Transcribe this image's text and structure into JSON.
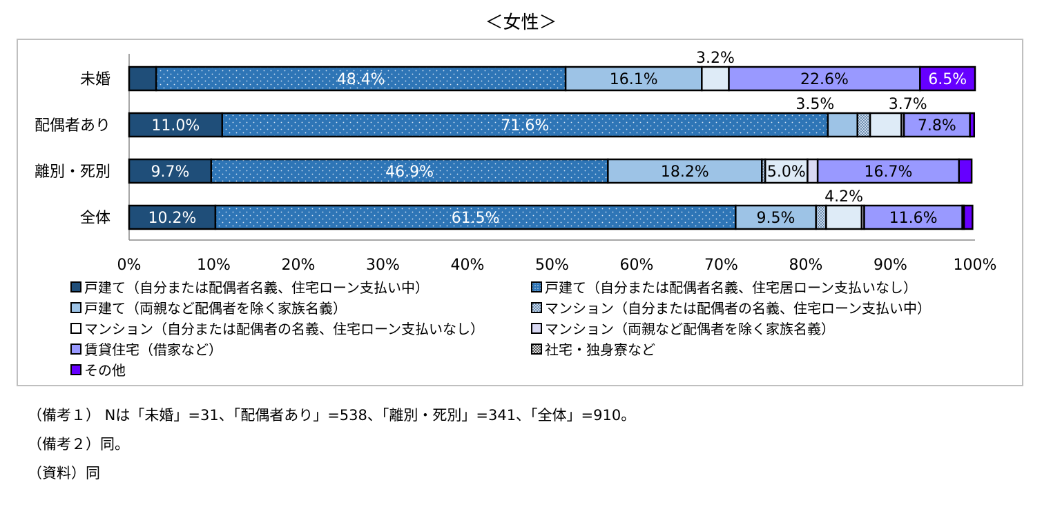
{
  "title": "＜女性＞",
  "chart_data": {
    "type": "bar",
    "orientation": "horizontal",
    "stacked": true,
    "title": "＜女性＞",
    "xlim": [
      0,
      100
    ],
    "x_ticks": [
      "0%",
      "10%",
      "20%",
      "30%",
      "40%",
      "50%",
      "60%",
      "70%",
      "80%",
      "90%",
      "100%"
    ],
    "categories": [
      "未婚",
      "配偶者あり",
      "離別・死別",
      "全体"
    ],
    "series": [
      {
        "name": "戸建て（自分または配偶者名義、住宅ローン支払い中）",
        "values": [
          3.2,
          11.0,
          9.7,
          10.2
        ],
        "labels": [
          "",
          "11.0%",
          "9.7%",
          "10.2%"
        ]
      },
      {
        "name": "戸建て（自分または配偶者名義、住宅居ローン支払いなし）",
        "values": [
          48.4,
          71.6,
          46.9,
          61.5
        ],
        "labels": [
          "48.4%",
          "71.6%",
          "46.9%",
          "61.5%"
        ]
      },
      {
        "name": "戸建て（両親など配偶者を除く家族名義）",
        "values": [
          16.1,
          3.5,
          18.2,
          9.5
        ],
        "labels": [
          "16.1%",
          "3.5%",
          "18.2%",
          "9.5%"
        ]
      },
      {
        "name": "マンション（自分または配偶者の名義、住宅ローン支払い中）",
        "values": [
          0.0,
          1.5,
          0.4,
          1.2
        ],
        "labels": [
          "",
          "",
          "",
          ""
        ]
      },
      {
        "name": "マンション（自分または配偶者の名義、住宅ローン支払いなし）",
        "values": [
          3.2,
          3.7,
          5.0,
          4.2
        ],
        "labels": [
          "3.2%",
          "3.7%",
          "5.0%",
          "4.2%"
        ]
      },
      {
        "name": "マンション（両親など配偶者を除く家族名義）",
        "values": [
          0.0,
          0.3,
          1.2,
          0.3
        ],
        "labels": [
          "",
          "",
          "",
          ""
        ]
      },
      {
        "name": "賃貸住宅（借家など）",
        "values": [
          22.6,
          7.8,
          16.7,
          11.6
        ],
        "labels": [
          "22.6%",
          "7.8%",
          "16.7%",
          "11.6%"
        ]
      },
      {
        "name": "社宅・独身寮など",
        "values": [
          0.0,
          0.0,
          0.0,
          0.2
        ],
        "labels": [
          "",
          "",
          "",
          ""
        ]
      },
      {
        "name": "その他",
        "values": [
          6.5,
          0.5,
          1.5,
          1.0
        ],
        "labels": [
          "6.5%",
          "",
          "",
          ""
        ]
      }
    ],
    "legend_position": "bottom",
    "colors": [
      "#1f4e79",
      "#2e75b6",
      "#9dc3e6",
      "#c9d9ec",
      "#deebf7",
      "#d9d9f3",
      "#9999ff",
      "#a6a6a6",
      "#6600ff"
    ]
  },
  "notes": [
    "（備考１） Nは「未婚」=31、「配偶者あり」=538、「離別・死別」=341、「全体」=910。",
    "（備考２）同。",
    "（資料）同"
  ]
}
